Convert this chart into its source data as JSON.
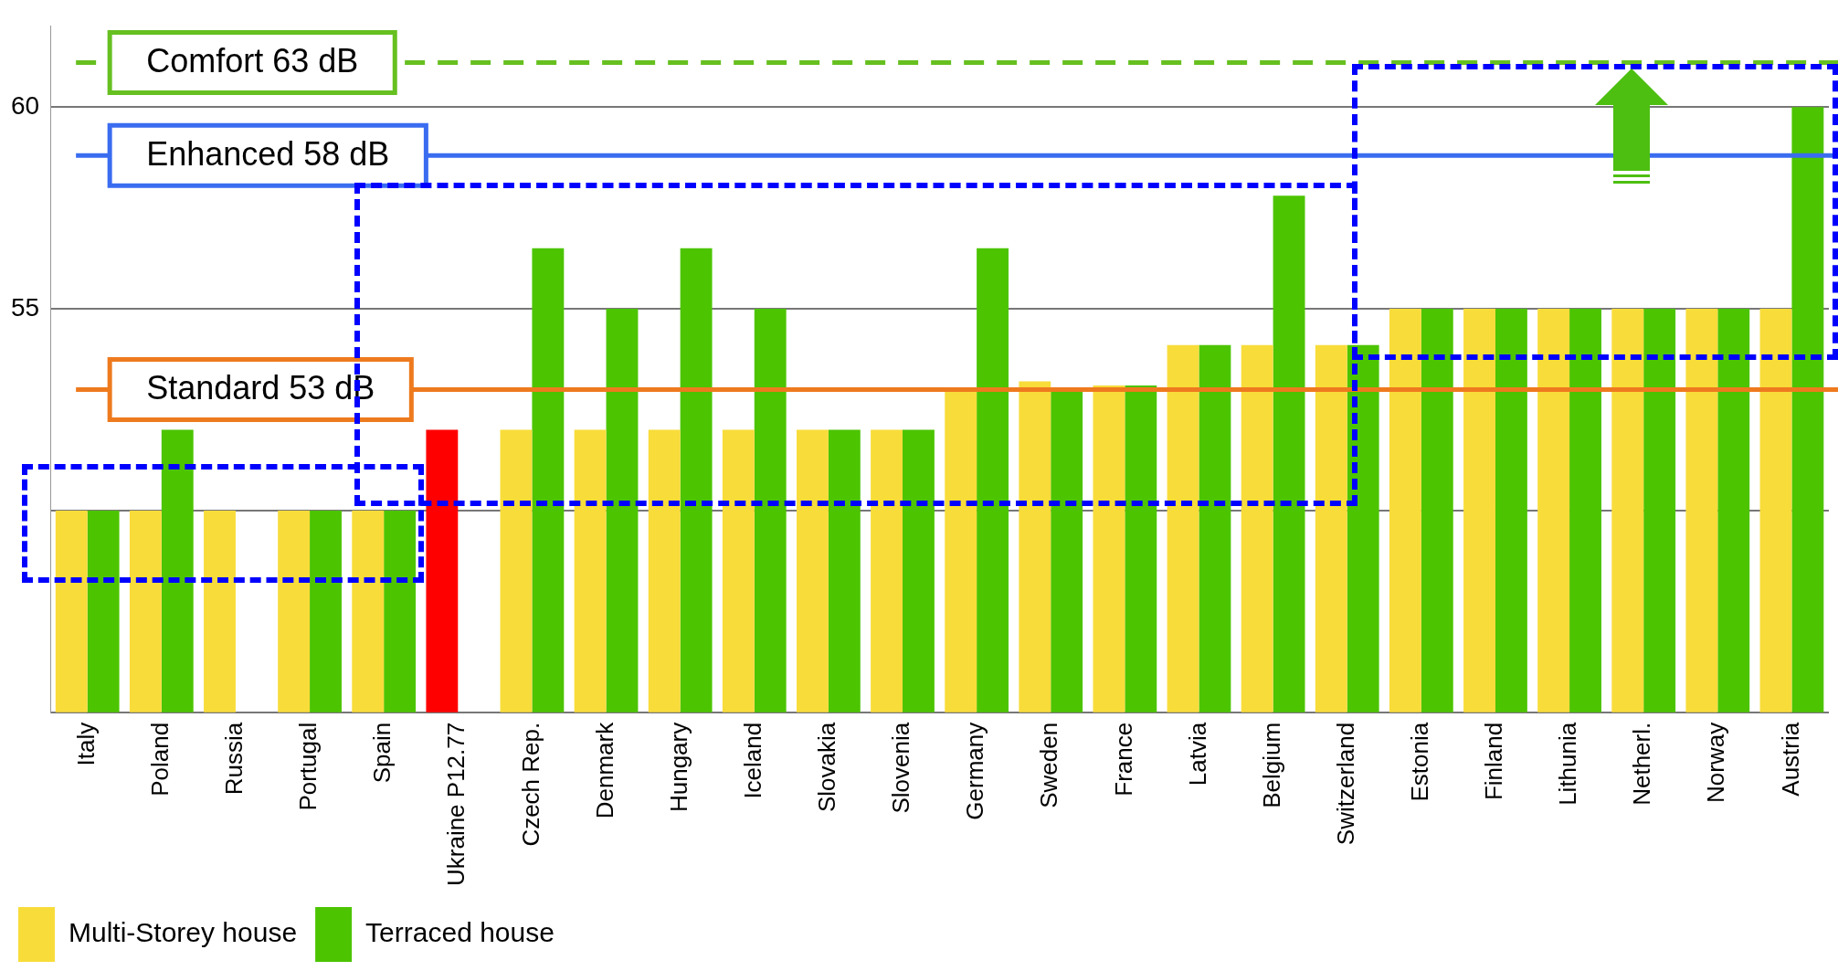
{
  "chart_data": {
    "type": "bar",
    "categories": [
      "Italy",
      "Poland",
      "Russia",
      "Portugal",
      "Spain",
      "Ukraine P12.77",
      "Czech Rep.",
      "Denmark",
      "Hungary",
      "Iceland",
      "Slovakia",
      "Slovenia",
      "Germany",
      "Sweden",
      "France",
      "Latvia",
      "Belgium",
      "Switzerland",
      "Estonia",
      "Finland",
      "Lithunia",
      "Netherl.",
      "Norway",
      "Austria"
    ],
    "series": [
      {
        "name": "Multi-Storey house",
        "color": "#f8dc3a",
        "colors": [
          "#f8dc3a",
          "#f8dc3a",
          "#f8dc3a",
          "#f8dc3a",
          "#f8dc3a",
          "#ff0000",
          "#f8dc3a",
          "#f8dc3a",
          "#f8dc3a",
          "#f8dc3a",
          "#f8dc3a",
          "#f8dc3a",
          "#f8dc3a",
          "#f8dc3a",
          "#f8dc3a",
          "#f8dc3a",
          "#f8dc3a",
          "#f8dc3a",
          "#f8dc3a",
          "#f8dc3a",
          "#f8dc3a",
          "#f8dc3a",
          "#f8dc3a",
          "#f8dc3a"
        ],
        "values": [
          50,
          50,
          50,
          50,
          50,
          52,
          52,
          52,
          52,
          52,
          52,
          52,
          53,
          53.2,
          53.1,
          54.1,
          54.1,
          54.1,
          55,
          55,
          55,
          55,
          55,
          55
        ]
      },
      {
        "name": "Terraced house",
        "color": "#4cc400",
        "values": [
          50,
          52,
          null,
          50,
          50,
          null,
          56.5,
          55,
          56.5,
          55,
          52,
          52,
          56.5,
          53,
          53.1,
          54.1,
          57.8,
          54.1,
          55,
          55,
          55,
          55,
          55,
          60
        ]
      }
    ],
    "ylim": [
      45,
      62
    ],
    "yticks": [
      {
        "value": 45,
        "label": null
      },
      {
        "value": 50,
        "label": null
      },
      55,
      60
    ],
    "grid": "y",
    "legend": "bottom left",
    "ref_lines": [
      {
        "axis": "y",
        "value": 61.1,
        "label": "Comfort 63 dB",
        "color": "#66c020",
        "line_style": "dashed"
      },
      {
        "axis": "y",
        "value": 58.8,
        "label": "Enhanced 58 dB",
        "color": "#3a6cf0",
        "line_style": "solid"
      },
      {
        "axis": "y",
        "value": 53,
        "label": "Standard 53 dB",
        "color": "#ee7a1e",
        "line_style": "solid"
      }
    ]
  }
}
